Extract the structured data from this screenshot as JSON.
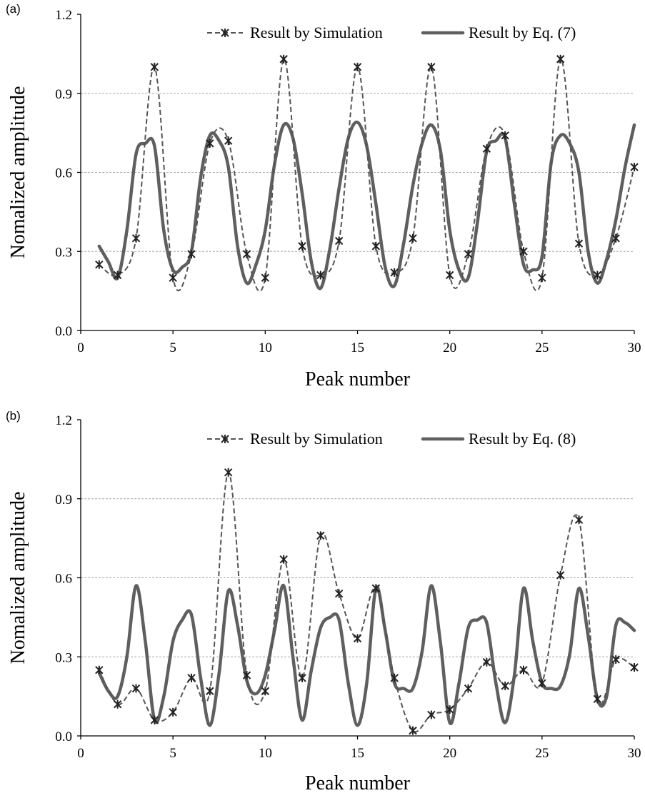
{
  "chart_data": [
    {
      "type": "line",
      "panel_label": "(a)",
      "xlabel": "Peak number",
      "ylabel": "Nomalized amplitude",
      "xlim": [
        0,
        30
      ],
      "ylim": [
        0,
        1.2
      ],
      "x_ticks": [
        "0",
        "5",
        "10",
        "15",
        "20",
        "25",
        "30"
      ],
      "y_ticks": [
        "0.0",
        "0.3",
        "0.6",
        "0.9",
        "1.2"
      ],
      "grid": "horizontal dashed",
      "legend_position": "top",
      "series": [
        {
          "name": "Result by Simulation",
          "style": "dashed with star markers",
          "x": [
            1,
            2,
            3,
            4,
            5,
            6,
            7,
            8,
            9,
            10,
            11,
            12,
            13,
            14,
            15,
            16,
            17,
            18,
            19,
            20,
            21,
            22,
            23,
            24,
            25,
            26,
            27,
            28,
            29,
            30
          ],
          "values": [
            0.25,
            0.21,
            0.35,
            1.0,
            0.2,
            0.29,
            0.71,
            0.72,
            0.29,
            0.2,
            1.03,
            0.32,
            0.21,
            0.34,
            1.0,
            0.32,
            0.22,
            0.35,
            1.0,
            0.21,
            0.29,
            0.69,
            0.74,
            0.3,
            0.2,
            1.03,
            0.33,
            0.21,
            0.35,
            0.62
          ]
        },
        {
          "name": "Result by Eq. (7)",
          "style": "solid thick",
          "x": [
            1,
            1.5,
            2,
            2.5,
            3,
            3.5,
            4,
            4.5,
            5,
            5.5,
            6,
            6.5,
            7,
            7.5,
            8,
            8.5,
            9,
            9.5,
            10,
            10.5,
            11,
            11.5,
            12,
            12.5,
            13,
            13.5,
            14,
            14.5,
            15,
            15.5,
            16,
            16.5,
            17,
            17.5,
            18,
            18.5,
            19,
            19.5,
            20,
            20.5,
            21,
            21.5,
            22,
            22.5,
            23,
            23.5,
            24,
            24.5,
            25,
            25.5,
            26,
            26.5,
            27,
            27.5,
            28,
            28.5,
            29,
            29.5,
            30
          ],
          "values": [
            0.32,
            0.26,
            0.2,
            0.38,
            0.67,
            0.71,
            0.7,
            0.38,
            0.23,
            0.24,
            0.3,
            0.58,
            0.74,
            0.72,
            0.62,
            0.32,
            0.18,
            0.25,
            0.38,
            0.63,
            0.78,
            0.73,
            0.52,
            0.26,
            0.16,
            0.31,
            0.54,
            0.73,
            0.79,
            0.7,
            0.48,
            0.24,
            0.17,
            0.33,
            0.55,
            0.71,
            0.78,
            0.68,
            0.38,
            0.23,
            0.2,
            0.41,
            0.68,
            0.72,
            0.73,
            0.48,
            0.25,
            0.23,
            0.28,
            0.64,
            0.74,
            0.71,
            0.6,
            0.3,
            0.18,
            0.27,
            0.42,
            0.62,
            0.78
          ]
        }
      ]
    },
    {
      "type": "line",
      "panel_label": "(b)",
      "xlabel": "Peak number",
      "ylabel": "Nomalized amplitude",
      "xlim": [
        0,
        30
      ],
      "ylim": [
        0,
        1.2
      ],
      "x_ticks": [
        "0",
        "5",
        "10",
        "15",
        "20",
        "25",
        "30"
      ],
      "y_ticks": [
        "0.0",
        "0.3",
        "0.6",
        "0.9",
        "1.2"
      ],
      "grid": "horizontal dashed",
      "legend_position": "top",
      "series": [
        {
          "name": "Result by Simulation",
          "style": "dashed with star markers",
          "x": [
            1,
            2,
            3,
            4,
            5,
            6,
            7,
            8,
            9,
            10,
            11,
            12,
            13,
            14,
            15,
            16,
            17,
            18,
            19,
            20,
            21,
            22,
            23,
            24,
            25,
            26,
            27,
            28,
            29,
            30
          ],
          "values": [
            0.25,
            0.12,
            0.18,
            0.06,
            0.09,
            0.22,
            0.17,
            1.0,
            0.23,
            0.17,
            0.67,
            0.22,
            0.76,
            0.54,
            0.37,
            0.56,
            0.22,
            0.02,
            0.08,
            0.1,
            0.18,
            0.28,
            0.19,
            0.25,
            0.2,
            0.61,
            0.82,
            0.14,
            0.29,
            0.26
          ]
        },
        {
          "name": "Result by Eq. (8)",
          "style": "solid thick",
          "x": [
            1,
            1.5,
            2,
            2.5,
            3,
            3.5,
            4,
            4.5,
            5,
            5.5,
            6,
            6.5,
            7,
            7.5,
            8,
            8.5,
            9,
            9.5,
            10,
            10.5,
            11,
            11.5,
            12,
            12.5,
            13,
            13.5,
            14,
            14.5,
            15,
            15.5,
            16,
            16.5,
            17,
            17.5,
            18,
            18.5,
            19,
            19.5,
            20,
            20.5,
            21,
            21.5,
            22,
            22.5,
            23,
            23.5,
            24,
            24.5,
            25,
            25.5,
            26,
            26.5,
            27,
            27.5,
            28,
            28.5,
            29,
            29.5,
            30
          ],
          "values": [
            0.24,
            0.17,
            0.15,
            0.3,
            0.57,
            0.36,
            0.06,
            0.15,
            0.36,
            0.44,
            0.46,
            0.22,
            0.04,
            0.24,
            0.55,
            0.42,
            0.21,
            0.16,
            0.23,
            0.4,
            0.57,
            0.3,
            0.06,
            0.25,
            0.41,
            0.45,
            0.44,
            0.2,
            0.04,
            0.2,
            0.56,
            0.4,
            0.2,
            0.18,
            0.18,
            0.32,
            0.57,
            0.35,
            0.05,
            0.2,
            0.41,
            0.44,
            0.43,
            0.2,
            0.05,
            0.23,
            0.56,
            0.36,
            0.2,
            0.18,
            0.19,
            0.31,
            0.56,
            0.38,
            0.14,
            0.15,
            0.42,
            0.43,
            0.4
          ]
        }
      ]
    }
  ]
}
